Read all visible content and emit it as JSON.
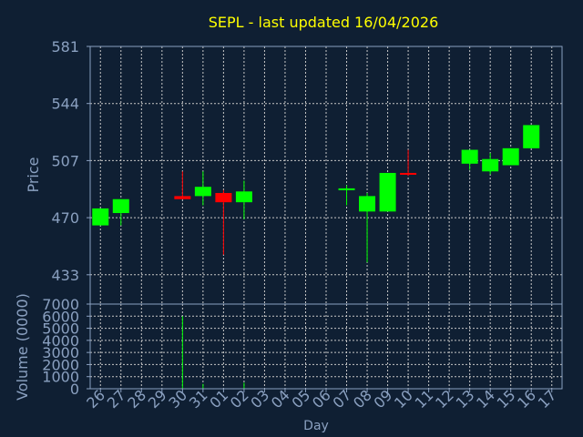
{
  "chart_data": {
    "type": "candlestick",
    "title": "SEPL - last updated 16/04/2026",
    "xlabel": "Day",
    "ylabel": "Price",
    "volume_label": "Volume (0000)",
    "days": [
      "26",
      "27",
      "28",
      "29",
      "30",
      "31",
      "01",
      "02",
      "03",
      "04",
      "05",
      "06",
      "07",
      "08",
      "09",
      "10",
      "11",
      "12",
      "13",
      "14",
      "15",
      "16",
      "17"
    ],
    "price_ticks": [
      433,
      470,
      507,
      544,
      581
    ],
    "price_range": [
      414,
      581
    ],
    "volume_ticks": [
      0,
      1000,
      2000,
      3000,
      4000,
      5000,
      6000,
      7000
    ],
    "volume_range": [
      0,
      7000
    ],
    "grid": true,
    "candles": [
      {
        "day": "26",
        "open": 465,
        "close": 476,
        "high": 476,
        "low": 465
      },
      {
        "day": "27",
        "open": 473,
        "close": 482,
        "high": 482,
        "low": 465
      },
      {
        "day": "30",
        "open": 484,
        "close": 482,
        "high": 500,
        "low": 482
      },
      {
        "day": "31",
        "open": 484,
        "close": 490,
        "high": 500,
        "low": 478
      },
      {
        "day": "01",
        "open": 486,
        "close": 480,
        "high": 488,
        "low": 446
      },
      {
        "day": "02",
        "open": 480,
        "close": 487,
        "high": 494,
        "low": 469
      },
      {
        "day": "07",
        "open": 489,
        "close": 489,
        "high": 491,
        "low": 478
      },
      {
        "day": "08",
        "open": 474,
        "close": 484,
        "high": 486,
        "low": 441
      },
      {
        "day": "09",
        "open": 474,
        "close": 499,
        "high": 499,
        "low": 474
      },
      {
        "day": "10",
        "open": 499,
        "close": 498,
        "high": 514,
        "low": 497
      },
      {
        "day": "13",
        "open": 505,
        "close": 514,
        "high": 514,
        "low": 501
      },
      {
        "day": "14",
        "open": 500,
        "close": 508,
        "high": 512,
        "low": 498
      },
      {
        "day": "15",
        "open": 504,
        "close": 515,
        "high": 515,
        "low": 504
      },
      {
        "day": "16",
        "open": 515,
        "close": 530,
        "high": 530,
        "low": 515
      }
    ],
    "volume": [
      {
        "day": "30",
        "value": 6000
      },
      {
        "day": "31",
        "value": 400
      },
      {
        "day": "02",
        "value": 500
      }
    ],
    "colors": {
      "background": "#0f1f33",
      "axis": "#8aa0c0",
      "tick_text": "#8aa0c0",
      "title": "#ffff00",
      "up": "#00ff00",
      "down": "#ff0000",
      "grid": "#c8c8c8"
    }
  }
}
